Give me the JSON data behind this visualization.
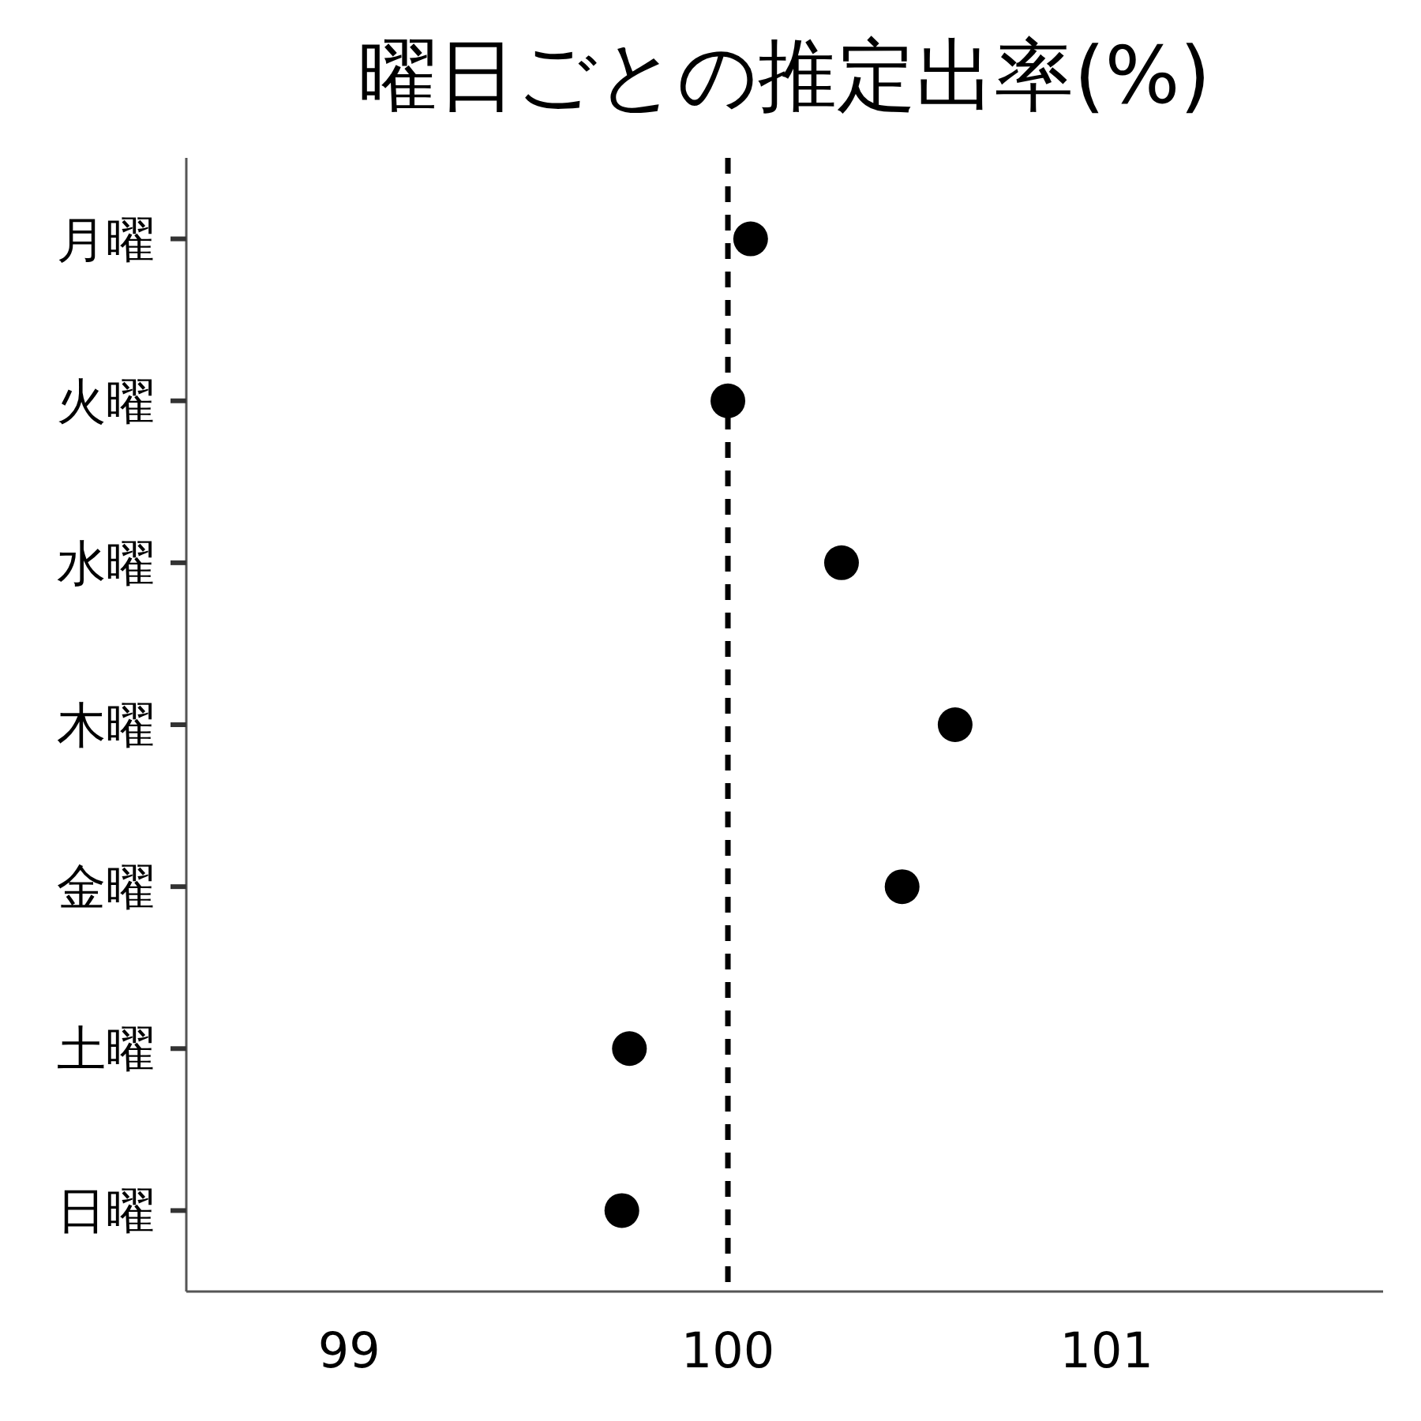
{
  "chart_data": {
    "type": "scatter",
    "title": "曜日ごとの推定出率(%)",
    "orientation": "horizontal",
    "categories": [
      "月曜",
      "火曜",
      "水曜",
      "木曜",
      "金曜",
      "土曜",
      "日曜"
    ],
    "series": [
      {
        "color": "#000000",
        "values": [
          100.06,
          100.0,
          100.3,
          100.6,
          100.46,
          99.74,
          99.72
        ]
      }
    ],
    "xlim": [
      98.57,
      101.73
    ],
    "xticks": [
      99,
      100,
      101
    ],
    "ref_lines": [
      {
        "axis": "x",
        "value": 100,
        "color": "#000000",
        "line_style": "dashed"
      }
    ],
    "marker": "circle",
    "grid": false
  }
}
